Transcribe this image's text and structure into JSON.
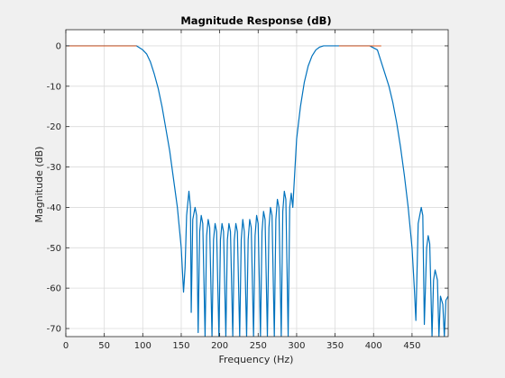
{
  "chart_data": {
    "type": "line",
    "title": "Magnitude Response (dB)",
    "xlabel": "Frequency (Hz)",
    "ylabel": "Magnitude (dB)",
    "xlim": [
      0,
      497
    ],
    "ylim": [
      -72,
      4
    ],
    "xticks": [
      0,
      50,
      100,
      150,
      200,
      250,
      300,
      350,
      400,
      450
    ],
    "xtick_labels": [
      "0",
      "50",
      "100",
      "150",
      "200",
      "250",
      "300",
      "350",
      "400",
      "450"
    ],
    "yticks": [
      0,
      -10,
      -20,
      -30,
      -40,
      -50,
      -60,
      -70
    ],
    "ytick_labels": [
      "0",
      "-10",
      "-20",
      "-30",
      "-40",
      "-50",
      "-60",
      "-70"
    ],
    "grid": true,
    "colors": {
      "response": "#0072bd",
      "reference": "#d95319"
    },
    "series": [
      {
        "x": [
          0,
          20,
          40,
          60,
          80,
          92,
          100,
          105,
          110,
          115,
          120,
          125,
          130,
          135,
          140,
          145,
          150,
          153,
          155,
          157,
          160,
          162,
          163,
          165,
          168,
          170,
          172,
          174,
          176,
          178,
          181,
          183,
          185,
          187,
          190,
          192,
          194,
          196,
          199,
          201,
          203,
          205,
          208,
          210,
          212,
          214,
          217,
          219,
          221,
          223,
          226,
          228,
          230,
          232,
          235,
          237,
          239,
          241,
          244,
          246,
          248,
          250,
          253,
          255,
          257,
          259,
          262,
          264,
          266,
          268,
          271,
          273,
          275,
          277,
          280,
          282,
          284,
          286,
          289,
          291,
          293,
          295,
          300,
          305,
          310,
          315,
          320,
          325,
          330,
          335,
          340,
          345,
          350,
          355,
          360,
          380,
          395,
          405,
          410,
          415,
          420,
          425,
          430,
          435,
          440,
          445,
          450,
          453,
          455,
          458,
          462,
          464,
          466,
          469,
          471,
          473,
          476,
          478,
          480,
          483,
          485,
          487,
          490,
          492,
          494,
          497
        ],
        "y": [
          0,
          0,
          0,
          0,
          0,
          0,
          -1,
          -2,
          -4,
          -7,
          -10.5,
          -15,
          -20.5,
          -26,
          -33,
          -40,
          -50,
          -61,
          -55,
          -42,
          -36,
          -40,
          -66,
          -43,
          -40,
          -42,
          -71,
          -46,
          -42,
          -44,
          -72,
          -47,
          -43,
          -45,
          -72,
          -48,
          -44,
          -46,
          -72,
          -48,
          -44,
          -46,
          -72,
          -48,
          -44,
          -46,
          -72,
          -48,
          -44,
          -46,
          -72,
          -48,
          -43,
          -46,
          -72,
          -48,
          -43,
          -45,
          -72,
          -47,
          -42,
          -44,
          -72,
          -46,
          -41,
          -43,
          -72,
          -45,
          -40,
          -42,
          -72,
          -43,
          -38,
          -40,
          -72,
          -41,
          -36,
          -38,
          -72,
          -40,
          -36.5,
          -40,
          -23,
          -15,
          -9,
          -5,
          -2.5,
          -1,
          -0.3,
          0,
          0,
          0,
          0,
          0,
          0,
          0,
          0,
          -1,
          -4,
          -7,
          -10,
          -14,
          -19,
          -25,
          -32,
          -40,
          -50,
          -60,
          -68,
          -44,
          -40,
          -42,
          -69,
          -50,
          -47,
          -49,
          -72,
          -58,
          -55.5,
          -58,
          -72,
          -62,
          -64,
          -72,
          -63,
          -62
        ]
      },
      {
        "x": [
          0,
          92
        ],
        "y": [
          0,
          0
        ]
      },
      {
        "x": [
          355,
          410
        ],
        "y": [
          0,
          0
        ]
      }
    ]
  }
}
